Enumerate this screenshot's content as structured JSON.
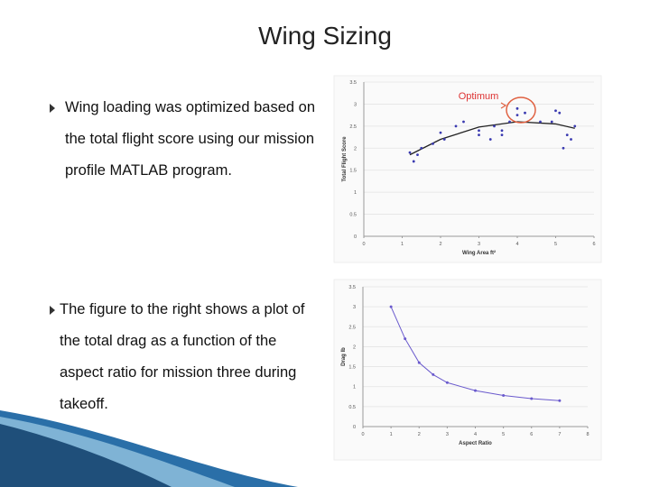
{
  "title": "Wing Sizing",
  "bullets": [
    "Wing loading was optimized based on the total flight score using our mission profile MATLAB program.",
    "The figure to the right shows a plot of the total drag as a function of the aspect ratio for mission three during takeoff."
  ],
  "chart_data": [
    {
      "type": "scatter",
      "xlabel": "Wing Area ft²",
      "ylabel": "Total Flight Score",
      "annotation": "Optimum",
      "x": [
        1.2,
        1.3,
        1.4,
        1.5,
        1.8,
        2.0,
        2.1,
        2.4,
        2.6,
        3.0,
        3.0,
        3.3,
        3.4,
        3.6,
        3.6,
        3.8,
        4.0,
        4.0,
        4.2,
        4.6,
        4.9,
        5.0,
        5.1,
        5.2,
        5.3,
        5.4,
        5.5
      ],
      "values": [
        1.9,
        1.7,
        1.85,
        2.0,
        2.1,
        2.35,
        2.2,
        2.5,
        2.6,
        2.3,
        2.4,
        2.2,
        2.5,
        2.3,
        2.4,
        2.6,
        2.9,
        2.75,
        2.8,
        2.6,
        2.6,
        2.85,
        2.8,
        2.0,
        2.3,
        2.2,
        2.5
      ],
      "color": "#3a3ab0",
      "trend": {
        "x": [
          1.2,
          2.0,
          3.0,
          4.0,
          5.0,
          5.5
        ],
        "values": [
          1.85,
          2.2,
          2.48,
          2.6,
          2.55,
          2.45
        ],
        "color": "#222222"
      },
      "xlim": [
        0,
        6
      ],
      "xticks": [
        0,
        1,
        2,
        3,
        4,
        5,
        6
      ],
      "ylim": [
        0,
        3.5
      ],
      "yticks": [
        0,
        0.5,
        1,
        1.5,
        2,
        2.5,
        3,
        3.5
      ],
      "grid": true
    },
    {
      "type": "line",
      "xlabel": "Aspect Ratio",
      "ylabel": "Drag lb",
      "x": [
        1,
        1.5,
        2,
        2.5,
        3,
        4,
        5,
        6,
        7
      ],
      "values": [
        3.0,
        2.2,
        1.6,
        1.3,
        1.1,
        0.9,
        0.78,
        0.7,
        0.65
      ],
      "color": "#6a5acd",
      "xlim": [
        0,
        8
      ],
      "xticks": [
        0,
        1,
        2,
        3,
        4,
        5,
        6,
        7,
        8
      ],
      "ylim": [
        0,
        3.5
      ],
      "yticks": [
        0,
        0.5,
        1,
        1.5,
        2,
        2.5,
        3,
        3.5
      ],
      "grid": true
    }
  ]
}
